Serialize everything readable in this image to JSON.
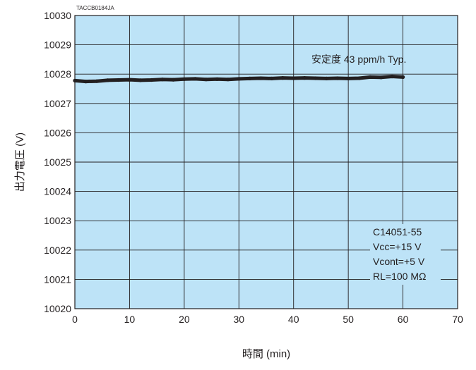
{
  "chart_data": {
    "type": "line",
    "figure_code": "TACCB0184JA",
    "xlabel": "時間 (min)",
    "ylabel": "出力電圧 (V)",
    "xlim": [
      0,
      70
    ],
    "ylim": [
      10020,
      10030
    ],
    "xticks": [
      "0",
      "10",
      "20",
      "30",
      "40",
      "50",
      "60",
      "70"
    ],
    "yticks": [
      "10020",
      "10021",
      "10022",
      "10023",
      "10024",
      "10025",
      "10026",
      "10027",
      "10028",
      "10029",
      "10030"
    ],
    "grid": true,
    "plot_background": "#BDE3F7",
    "line_color": "#231F20",
    "annotations": {
      "stability": "安定度 43 ppm/h Typ.",
      "conditions": [
        "C14051-55",
        "Vcc=+15 V",
        "Vcont=+5 V",
        "RL=100 MΩ"
      ]
    },
    "series": [
      {
        "x": [
          0,
          2,
          4,
          6,
          8,
          10,
          12,
          14,
          16,
          18,
          20,
          22,
          24,
          26,
          28,
          30,
          32,
          34,
          36,
          38,
          40,
          42,
          44,
          46,
          48,
          50,
          52,
          54,
          56,
          58,
          60
        ],
        "values": [
          10027.78,
          10027.75,
          10027.76,
          10027.79,
          10027.8,
          10027.81,
          10027.79,
          10027.8,
          10027.82,
          10027.81,
          10027.83,
          10027.84,
          10027.82,
          10027.83,
          10027.82,
          10027.84,
          10027.85,
          10027.86,
          10027.85,
          10027.87,
          10027.86,
          10027.87,
          10027.86,
          10027.85,
          10027.86,
          10027.85,
          10027.86,
          10027.9,
          10027.89,
          10027.92,
          10027.9
        ]
      }
    ]
  }
}
